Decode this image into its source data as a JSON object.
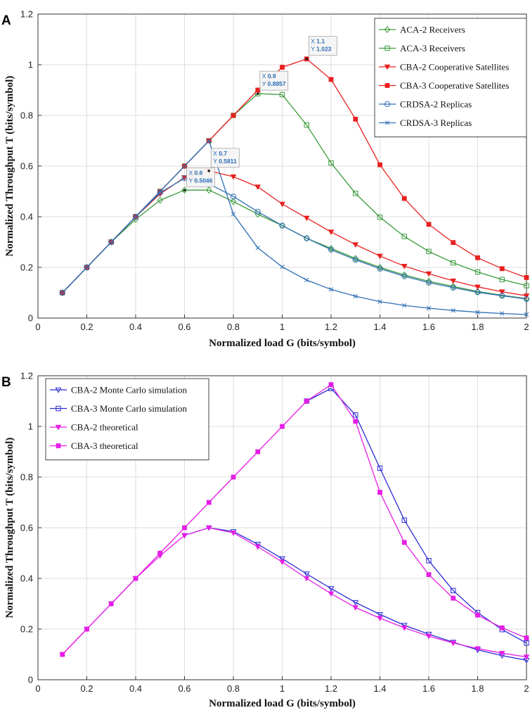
{
  "chart_data": [
    {
      "type": "line",
      "panel_label": "A",
      "title": "",
      "xlabel": "Normalized load G (bits/symbol)",
      "ylabel": "Normalized Throughput T (bits/symbol)",
      "xlim": [
        0,
        2
      ],
      "ylim": [
        0,
        1.2
      ],
      "xticks": [
        "0",
        "0.2",
        "0.4",
        "0.6",
        "0.8",
        "1",
        "1.2",
        "1.4",
        "1.6",
        "1.8",
        "2"
      ],
      "yticks": [
        "0",
        "0.2",
        "0.4",
        "0.6",
        "0.8",
        "1",
        "1.2"
      ],
      "grid": true,
      "legend_position": "top-right",
      "series": [
        {
          "name": "ACA-2 Receivers",
          "color": "#3a9a3a",
          "marker": "diamond",
          "x": [
            0.1,
            0.2,
            0.3,
            0.4,
            0.5,
            0.6,
            0.7,
            0.8,
            0.9,
            1.0,
            1.1,
            1.2,
            1.3,
            1.4,
            1.5,
            1.6,
            1.7,
            1.8,
            1.9,
            2.0
          ],
          "y": [
            0.1,
            0.2,
            0.3,
            0.39,
            0.465,
            0.505,
            0.505,
            0.46,
            0.41,
            0.365,
            0.315,
            0.275,
            0.235,
            0.2,
            0.17,
            0.145,
            0.125,
            0.105,
            0.09,
            0.077
          ]
        },
        {
          "name": "ACA-3 Receivers",
          "color": "#3a9a3a",
          "marker": "square-open",
          "x": [
            0.1,
            0.2,
            0.3,
            0.4,
            0.5,
            0.6,
            0.7,
            0.8,
            0.9,
            1.0,
            1.1,
            1.2,
            1.3,
            1.4,
            1.5,
            1.6,
            1.7,
            1.8,
            1.9,
            2.0
          ],
          "y": [
            0.1,
            0.2,
            0.3,
            0.4,
            0.5,
            0.6,
            0.7,
            0.8,
            0.8857,
            0.882,
            0.762,
            0.612,
            0.492,
            0.398,
            0.322,
            0.263,
            0.218,
            0.182,
            0.152,
            0.128
          ]
        },
        {
          "name": "CBA-2 Cooperative Satellites",
          "color": "#e8211f",
          "marker": "triangle-down-filled",
          "x": [
            0.1,
            0.2,
            0.3,
            0.4,
            0.5,
            0.6,
            0.7,
            0.8,
            0.9,
            1.0,
            1.1,
            1.2,
            1.3,
            1.4,
            1.5,
            1.6,
            1.7,
            1.8,
            1.9,
            2.0
          ],
          "y": [
            0.1,
            0.2,
            0.3,
            0.4,
            0.49,
            0.555,
            0.5811,
            0.558,
            0.518,
            0.45,
            0.395,
            0.34,
            0.29,
            0.245,
            0.205,
            0.175,
            0.147,
            0.123,
            0.104,
            0.088
          ]
        },
        {
          "name": "CBA-3 Cooperative Satellites",
          "color": "#e8211f",
          "marker": "square-filled",
          "x": [
            0.1,
            0.2,
            0.3,
            0.4,
            0.5,
            0.6,
            0.7,
            0.8,
            0.9,
            1.0,
            1.1,
            1.2,
            1.3,
            1.4,
            1.5,
            1.6,
            1.7,
            1.8,
            1.9,
            2.0
          ],
          "y": [
            0.1,
            0.2,
            0.3,
            0.4,
            0.5,
            0.6,
            0.7,
            0.8,
            0.9,
            0.99,
            1.023,
            0.942,
            0.785,
            0.605,
            0.472,
            0.37,
            0.298,
            0.238,
            0.195,
            0.16
          ]
        },
        {
          "name": "CRDSA-2 Replicas",
          "color": "#2f6fb5",
          "marker": "circle-open",
          "x": [
            0.1,
            0.2,
            0.3,
            0.4,
            0.5,
            0.6,
            0.7,
            0.8,
            0.9,
            1.0,
            1.1,
            1.2,
            1.3,
            1.4,
            1.5,
            1.6,
            1.7,
            1.8,
            1.9,
            2.0
          ],
          "y": [
            0.1,
            0.2,
            0.3,
            0.4,
            0.495,
            0.552,
            0.53,
            0.48,
            0.42,
            0.365,
            0.315,
            0.27,
            0.23,
            0.195,
            0.165,
            0.14,
            0.12,
            0.102,
            0.088,
            0.075
          ]
        },
        {
          "name": "CRDSA-3 Replicas",
          "color": "#2f6fb5",
          "marker": "x",
          "x": [
            0.1,
            0.2,
            0.3,
            0.4,
            0.5,
            0.6,
            0.7,
            0.8,
            0.9,
            1.0,
            1.1,
            1.2,
            1.3,
            1.4,
            1.5,
            1.6,
            1.7,
            1.8,
            1.9,
            2.0
          ],
          "y": [
            0.1,
            0.2,
            0.3,
            0.4,
            0.5,
            0.6,
            0.7,
            0.41,
            0.277,
            0.202,
            0.15,
            0.113,
            0.086,
            0.065,
            0.05,
            0.039,
            0.03,
            0.023,
            0.018,
            0.014
          ]
        }
      ],
      "annotations": [
        {
          "series": "ACA-2 Receivers",
          "x": "0.6",
          "y": "0.5046"
        },
        {
          "series": "CBA-2 Cooperative Satellites",
          "x": "0.7",
          "y": "0.5811"
        },
        {
          "series": "ACA-3 Receivers",
          "x": "0.9",
          "y": "0.8857"
        },
        {
          "series": "CBA-3 Cooperative Satellites",
          "x": "1.1",
          "y": "1.023"
        }
      ]
    },
    {
      "type": "line",
      "panel_label": "B",
      "title": "",
      "xlabel": "Normalized load G (bits/symbol)",
      "ylabel": "Normalized Throughput T (bits/symbol)",
      "xlim": [
        0,
        2
      ],
      "ylim": [
        0,
        1.2
      ],
      "xticks": [
        "0",
        "0.2",
        "0.4",
        "0.6",
        "0.8",
        "1",
        "1.2",
        "1.4",
        "1.6",
        "1.8",
        "2"
      ],
      "yticks": [
        "0",
        "0.2",
        "0.4",
        "0.6",
        "0.8",
        "1",
        "1.2"
      ],
      "grid": true,
      "legend_position": "top-left",
      "series": [
        {
          "name": "CBA-2 Monte Carlo simulation",
          "color": "#2b2bd6",
          "marker": "triangle-down-open",
          "x": [
            0.6,
            0.7,
            0.8,
            0.9,
            1.0,
            1.1,
            1.2,
            1.3,
            1.4,
            1.5,
            1.6,
            1.7,
            1.8,
            1.9,
            2.0
          ],
          "y": [
            0.57,
            0.6,
            0.585,
            0.535,
            0.478,
            0.418,
            0.36,
            0.305,
            0.258,
            0.215,
            0.18,
            0.148,
            0.118,
            0.095,
            0.077
          ]
        },
        {
          "name": "CBA-3 Monte Carlo simulation",
          "color": "#2b2bd6",
          "marker": "square-open",
          "x": [
            1.1,
            1.2,
            1.3,
            1.4,
            1.5,
            1.6,
            1.7,
            1.8,
            1.9,
            2.0
          ],
          "y": [
            1.1,
            1.15,
            1.045,
            0.835,
            0.63,
            0.47,
            0.352,
            0.265,
            0.198,
            0.145
          ]
        },
        {
          "name": "CBA-2 theoretical",
          "color": "#e51ee5",
          "marker": "triangle-down-filled",
          "x": [
            0.1,
            0.2,
            0.3,
            0.4,
            0.5,
            0.6,
            0.7,
            0.8,
            0.9,
            1.0,
            1.1,
            1.2,
            1.3,
            1.4,
            1.5,
            1.6,
            1.7,
            1.8,
            1.9,
            2.0
          ],
          "y": [
            0.1,
            0.2,
            0.3,
            0.4,
            0.49,
            0.57,
            0.6,
            0.58,
            0.525,
            0.465,
            0.4,
            0.34,
            0.285,
            0.243,
            0.205,
            0.172,
            0.145,
            0.123,
            0.105,
            0.09
          ]
        },
        {
          "name": "CBA-3 theoretical",
          "color": "#e51ee5",
          "marker": "square-filled",
          "x": [
            0.1,
            0.2,
            0.3,
            0.4,
            0.5,
            0.6,
            0.7,
            0.8,
            0.9,
            1.0,
            1.1,
            1.2,
            1.3,
            1.4,
            1.5,
            1.6,
            1.7,
            1.8,
            1.9,
            2.0
          ],
          "y": [
            0.1,
            0.2,
            0.3,
            0.4,
            0.5,
            0.6,
            0.7,
            0.8,
            0.9,
            1.0,
            1.1,
            1.165,
            1.02,
            0.74,
            0.542,
            0.415,
            0.322,
            0.255,
            0.205,
            0.165
          ]
        }
      ]
    }
  ]
}
